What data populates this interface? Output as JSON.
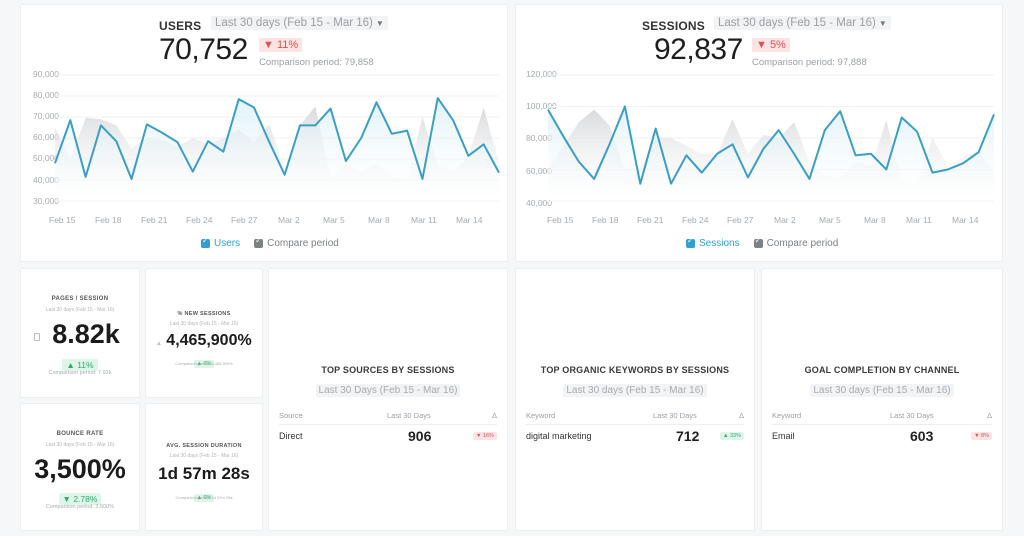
{
  "users_widget": {
    "title": "USERS",
    "date_range": "Last 30 days (Feb 15 - Mar 16)",
    "value": "70,752",
    "change": "▼ 11%",
    "comparison": "Comparison period: 79,858",
    "legend": {
      "primary": "Users",
      "compare": "Compare period"
    }
  },
  "sessions_widget": {
    "title": "SESSIONS",
    "date_range": "Last 30 days (Feb 15 - Mar 16)",
    "value": "92,837",
    "change": "▼ 5%",
    "comparison": "Comparison period: 97,888",
    "legend": {
      "primary": "Sessions",
      "compare": "Compare period"
    }
  },
  "kpis": {
    "pages_session": {
      "title": "PAGES / SESSION",
      "date_range": "Last 30 days (Feb 15 - Mar 16)",
      "value": "8.82k",
      "change": "▲ 11%",
      "comparison": "Comparison period: 7.92k"
    },
    "new_sessions": {
      "title": "% NEW SESSIONS",
      "date_range": "Last 30 days (Feb 15 - Mar 16)",
      "value": "4,465,900%",
      "change": "▲ 0%",
      "comparison": "Comparison period: 4,465,900%"
    },
    "bounce_rate": {
      "title": "BOUNCE RATE",
      "date_range": "Last 30 days (Feb 15 - Mar 16)",
      "value": "3,500%",
      "change": "▼ 2.78%",
      "comparison": "Comparison period: 3,600%"
    },
    "avg_duration": {
      "title": "AVG. SESSION DURATION",
      "date_range": "Last 30 days (Feb 15 - Mar 16)",
      "value": "1d 57m 28s",
      "change": "▲ 0%",
      "comparison": "Comparison period: 1d 57m 28s"
    }
  },
  "tables": {
    "sources": {
      "title": "TOP SOURCES BY SESSIONS",
      "date_range": "Last 30 Days (Feb 15 - Mar 16)",
      "columns": [
        "Source",
        "Last 30 Days",
        "Δ"
      ],
      "rows": [
        {
          "name": "Direct",
          "value": "906",
          "change": "▼ 16%"
        }
      ]
    },
    "keywords": {
      "title": "TOP ORGANIC KEYWORDS BY SESSIONS",
      "date_range": "Last 30 days (Feb 15 - Mar 16)",
      "columns": [
        "Keyword",
        "Last 30 Days",
        "Δ"
      ],
      "rows": [
        {
          "name": "digital marketing",
          "value": "712",
          "change": "▲ 33%"
        }
      ]
    },
    "goals": {
      "title": "GOAL COMPLETION BY CHANNEL",
      "date_range": "Last 30 days (Feb 15 - Mar 16)",
      "columns": [
        "Keyword",
        "Last 30 Days",
        "Δ"
      ],
      "rows": [
        {
          "name": "Email",
          "value": "603",
          "change": "▼ 8%"
        }
      ]
    }
  },
  "colors": {
    "line": "#3a9fc4",
    "area": "#d7eef7",
    "compare": "#d6d8da",
    "negative": "#d9534f",
    "positive": "#2eaa6a"
  },
  "chart_data": [
    {
      "type": "line",
      "title": "USERS",
      "x": [
        "Feb 15",
        "Feb 16",
        "Feb 17",
        "Feb 18",
        "Feb 19",
        "Feb 20",
        "Feb 21",
        "Feb 22",
        "Feb 23",
        "Feb 24",
        "Feb 25",
        "Feb 26",
        "Feb 27",
        "Feb 28",
        "Mar 1",
        "Mar 2",
        "Mar 3",
        "Mar 4",
        "Mar 5",
        "Mar 6",
        "Mar 7",
        "Mar 8",
        "Mar 9",
        "Mar 10",
        "Mar 11",
        "Mar 12",
        "Mar 13",
        "Mar 14",
        "Mar 15",
        "Mar 16"
      ],
      "xticks": [
        "Feb 15",
        "Feb 18",
        "Feb 21",
        "Feb 24",
        "Feb 27",
        "Mar 2",
        "Mar 5",
        "Mar 8",
        "Mar 11",
        "Mar 14"
      ],
      "yticks": [
        "90,000",
        "80,000",
        "70,000",
        "60,000",
        "50,000",
        "40,000",
        "30,000"
      ],
      "ylim": [
        30000,
        90000
      ],
      "series": [
        {
          "name": "Users",
          "values": [
            48000,
            68500,
            41500,
            66000,
            58500,
            40500,
            66500,
            62500,
            58000,
            44000,
            58500,
            53500,
            78500,
            74500,
            58000,
            42500,
            66000,
            66000,
            74000,
            49000,
            60000,
            77000,
            62000,
            63500,
            40500,
            79000,
            68500,
            51500,
            57000,
            43500
          ]
        },
        {
          "name": "Compare period",
          "values": [
            65000,
            50000,
            69500,
            69000,
            66000,
            55000,
            60000,
            59000,
            56000,
            60000,
            57000,
            60000,
            64000,
            58000,
            66500,
            45000,
            66000,
            75000,
            41000,
            47500,
            44000,
            47500,
            42000,
            40000,
            70000,
            47000,
            44000,
            51000,
            74500,
            48000
          ]
        }
      ],
      "legend": [
        "Users",
        "Compare period"
      ]
    },
    {
      "type": "line",
      "title": "SESSIONS",
      "x": [
        "Feb 15",
        "Feb 16",
        "Feb 17",
        "Feb 18",
        "Feb 19",
        "Feb 20",
        "Feb 21",
        "Feb 22",
        "Feb 23",
        "Feb 24",
        "Feb 25",
        "Feb 26",
        "Feb 27",
        "Feb 28",
        "Mar 1",
        "Mar 2",
        "Mar 3",
        "Mar 4",
        "Mar 5",
        "Mar 6",
        "Mar 7",
        "Mar 8",
        "Mar 9",
        "Mar 10",
        "Mar 11",
        "Mar 12",
        "Mar 13",
        "Mar 14",
        "Mar 15",
        "Mar 16"
      ],
      "xticks": [
        "Feb 15",
        "Feb 18",
        "Feb 21",
        "Feb 24",
        "Feb 27",
        "Mar 2",
        "Mar 5",
        "Mar 8",
        "Mar 11",
        "Mar 14"
      ],
      "yticks": [
        "120,000",
        "100,000",
        "80,000",
        "60,000",
        "40,000"
      ],
      "ylim": [
        40000,
        120000
      ],
      "series": [
        {
          "name": "Sessions",
          "values": [
            98000,
            81000,
            65000,
            54000,
            76000,
            100000,
            51000,
            86000,
            51000,
            69000,
            58000,
            70000,
            76000,
            55000,
            73000,
            85000,
            70000,
            54000,
            85000,
            97000,
            69000,
            70000,
            60000,
            93000,
            84000,
            58000,
            60000,
            64000,
            71000,
            95000
          ]
        },
        {
          "name": "Compare period",
          "values": [
            60000,
            75000,
            90000,
            98000,
            88000,
            60000,
            62000,
            80000,
            80000,
            75000,
            70000,
            70000,
            92000,
            70000,
            82000,
            80000,
            90000,
            65000,
            56000,
            55000,
            65000,
            62000,
            91000,
            53000,
            52000,
            80000,
            62000,
            68000,
            72000,
            58000
          ]
        }
      ],
      "legend": [
        "Sessions",
        "Compare period"
      ]
    }
  ]
}
